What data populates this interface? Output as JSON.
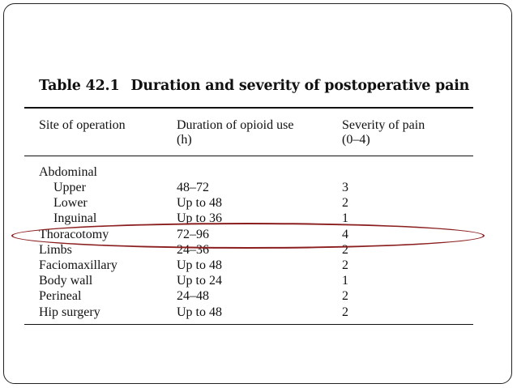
{
  "table": {
    "number": "Table 42.1",
    "title": "Duration and severity of postoperative pain",
    "headers": {
      "site": "Site of operation",
      "duration_line1": "Duration of opioid use",
      "duration_line2": "(h)",
      "severity_line1": "Severity of pain",
      "severity_line2": "(0–4)"
    },
    "group_label": "Abdominal",
    "rows": [
      {
        "site": "Upper",
        "duration": "48–72",
        "severity": "3",
        "indent": true
      },
      {
        "site": "Lower",
        "duration": "Up to 48",
        "severity": "2",
        "indent": true
      },
      {
        "site": "Inguinal",
        "duration": "Up to 36",
        "severity": "1",
        "indent": true
      },
      {
        "site": "Thoracotomy",
        "duration": "72–96",
        "severity": "4",
        "indent": false,
        "highlighted": true
      },
      {
        "site": "Limbs",
        "duration": "24–36",
        "severity": "2",
        "indent": false
      },
      {
        "site": "Faciomaxillary",
        "duration": "Up to 48",
        "severity": "2",
        "indent": false
      },
      {
        "site": "Body wall",
        "duration": "Up to 24",
        "severity": "1",
        "indent": false
      },
      {
        "site": "Perineal",
        "duration": "24–48",
        "severity": "2",
        "indent": false
      },
      {
        "site": "Hip surgery",
        "duration": "Up to 48",
        "severity": "2",
        "indent": false
      }
    ]
  },
  "colors": {
    "highlight_ellipse": "#8b1e1e",
    "text": "#111111"
  }
}
